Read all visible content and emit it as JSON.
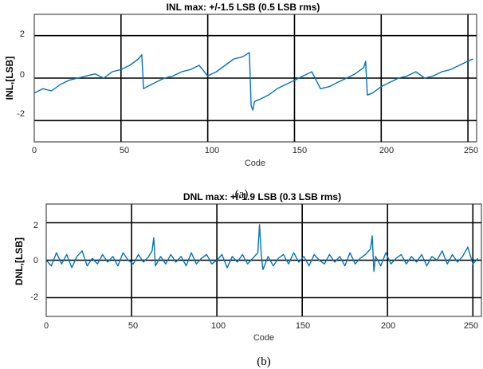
{
  "chart_data": [
    {
      "type": "line",
      "title": "INL max: +/-1.5 LSB (0.5 LSB rms)",
      "xlabel": "Code",
      "ylabel": "INL,[LSB]",
      "caption": "(a)",
      "xlim": [
        0,
        255
      ],
      "ylim": [
        -3,
        3
      ],
      "xticks": [
        "0",
        "50",
        "100",
        "150",
        "200",
        "250"
      ],
      "yticks": [
        "-2",
        "0",
        "2"
      ],
      "grid": true,
      "series_color": "#0072BD",
      "series": [
        {
          "x": [
            0,
            5,
            10,
            15,
            20,
            25,
            30,
            35,
            40,
            45,
            50,
            55,
            60,
            62,
            63,
            65,
            70,
            75,
            80,
            85,
            90,
            95,
            100,
            105,
            110,
            115,
            120,
            124,
            125,
            126,
            127,
            130,
            135,
            140,
            145,
            150,
            155,
            160,
            165,
            170,
            175,
            180,
            185,
            190,
            191,
            192,
            195,
            200,
            205,
            210,
            215,
            220,
            225,
            230,
            235,
            240,
            245,
            250,
            253
          ],
          "y": [
            -0.7,
            -0.5,
            -0.6,
            -0.3,
            -0.1,
            0.0,
            0.1,
            0.2,
            0.0,
            0.3,
            0.4,
            0.6,
            0.9,
            1.1,
            -0.5,
            -0.4,
            -0.2,
            0.0,
            0.1,
            0.3,
            0.4,
            0.6,
            0.1,
            0.3,
            0.6,
            0.9,
            1.0,
            1.2,
            -1.3,
            -1.5,
            -1.1,
            -1.0,
            -0.8,
            -0.5,
            -0.3,
            -0.1,
            0.1,
            0.3,
            -0.5,
            -0.4,
            -0.2,
            0.0,
            0.2,
            0.5,
            0.8,
            -0.8,
            -0.7,
            -0.4,
            -0.2,
            0.0,
            0.1,
            0.3,
            0.0,
            0.1,
            0.3,
            0.4,
            0.6,
            0.8,
            0.9
          ]
        }
      ]
    },
    {
      "type": "line",
      "title": "DNL max: +/-1.9 LSB (0.3 LSB rms)",
      "xlabel": "Code",
      "ylabel": "DNL,[LSB]",
      "caption": "(b)",
      "xlim": [
        0,
        255
      ],
      "ylim": [
        -3,
        3
      ],
      "xticks": [
        "0",
        "50",
        "100",
        "150",
        "200",
        "250"
      ],
      "yticks": [
        "-2",
        "0",
        "2"
      ],
      "grid": true,
      "series_color": "#0072BD",
      "series": [
        {
          "x": [
            0,
            3,
            6,
            9,
            12,
            15,
            18,
            21,
            24,
            27,
            30,
            33,
            36,
            39,
            42,
            45,
            48,
            51,
            54,
            57,
            60,
            62,
            63,
            64,
            67,
            70,
            73,
            76,
            79,
            82,
            85,
            88,
            91,
            94,
            97,
            100,
            103,
            106,
            109,
            112,
            115,
            118,
            121,
            124,
            125,
            126,
            127,
            130,
            133,
            136,
            139,
            142,
            145,
            148,
            151,
            154,
            157,
            160,
            163,
            166,
            169,
            172,
            175,
            178,
            181,
            184,
            187,
            190,
            191,
            192,
            193,
            196,
            199,
            202,
            205,
            208,
            211,
            214,
            217,
            220,
            223,
            226,
            229,
            232,
            235,
            238,
            241,
            244,
            247,
            250,
            253
          ],
          "y": [
            0.0,
            -0.3,
            0.4,
            -0.2,
            0.3,
            -0.4,
            0.2,
            0.5,
            -0.3,
            0.1,
            -0.2,
            0.3,
            -0.1,
            0.2,
            -0.3,
            0.4,
            0.0,
            -0.2,
            0.3,
            -0.1,
            0.2,
            0.5,
            1.2,
            -0.3,
            0.2,
            -0.2,
            0.3,
            -0.1,
            0.2,
            -0.3,
            0.4,
            -0.2,
            0.1,
            0.3,
            -0.2,
            0.0,
            0.3,
            -0.4,
            0.2,
            -0.1,
            0.3,
            -0.2,
            0.1,
            0.4,
            1.9,
            0.3,
            -0.5,
            0.2,
            -0.3,
            0.1,
            0.3,
            -0.2,
            0.4,
            -0.1,
            0.2,
            -0.3,
            0.3,
            0.0,
            -0.2,
            0.3,
            -0.1,
            0.2,
            -0.3,
            0.4,
            -0.2,
            0.1,
            0.3,
            0.6,
            1.3,
            -0.6,
            0.2,
            -0.3,
            0.4,
            -0.2,
            0.1,
            0.3,
            -0.2,
            0.2,
            -0.1,
            0.3,
            -0.3,
            0.2,
            0.0,
            0.5,
            -0.2,
            0.3,
            -0.1,
            0.2,
            0.7,
            -0.2,
            0.1
          ]
        }
      ]
    }
  ]
}
